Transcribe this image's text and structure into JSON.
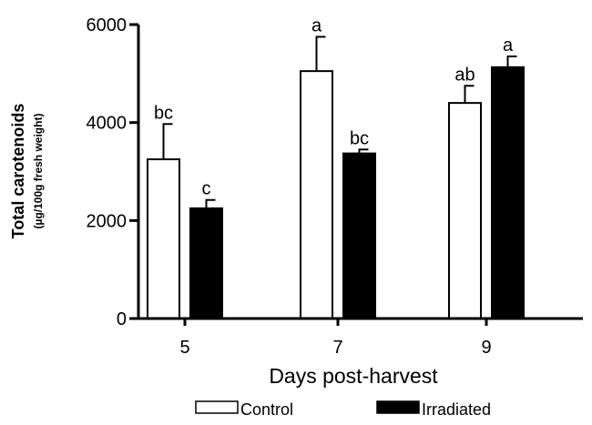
{
  "chart_data": {
    "type": "bar",
    "xlabel": "Days post-harvest",
    "ylabel": "Total carotenoids",
    "ylabel_units": "(µg/100g fresh weight)",
    "ylim": [
      0,
      6000
    ],
    "yticks": [
      0,
      2000,
      4000,
      6000
    ],
    "categories": [
      "5",
      "7",
      "9"
    ],
    "legend_position": "bottom",
    "series": [
      {
        "name": "Control",
        "fill": "#ffffff",
        "values": [
          3250,
          5050,
          4400
        ],
        "errors": [
          720,
          700,
          350
        ],
        "significance": [
          "bc",
          "a",
          "ab"
        ]
      },
      {
        "name": "Irradiated",
        "fill": "#000000",
        "values": [
          2250,
          3370,
          5130
        ],
        "errors": [
          170,
          80,
          220
        ],
        "significance": [
          "c",
          "bc",
          "a"
        ]
      }
    ]
  }
}
